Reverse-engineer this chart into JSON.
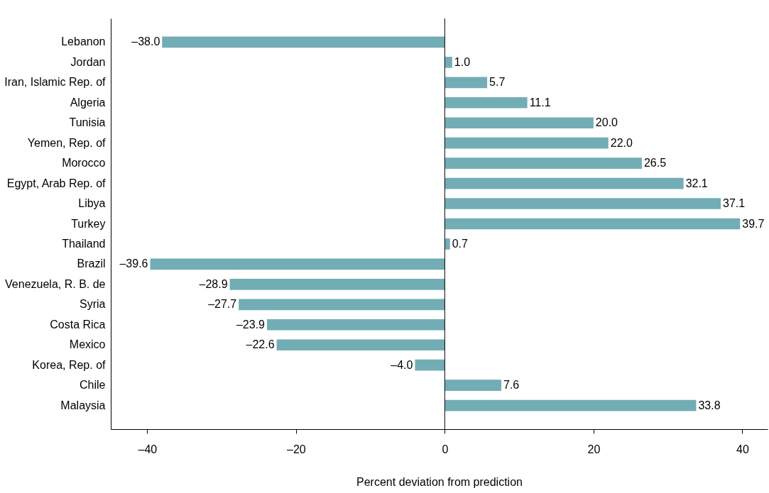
{
  "chart_data": {
    "type": "bar",
    "orientation": "horizontal",
    "xlabel": "Percent deviation from prediction",
    "categories": [
      "Lebanon",
      "Jordan",
      "Iran, Islamic Rep. of",
      "Algeria",
      "Tunisia",
      "Yemen, Rep. of",
      "Morocco",
      "Egypt, Arab Rep. of",
      "Libya",
      "Turkey",
      "Thailand",
      "Brazil",
      "Venezuela, R. B. de",
      "Syria",
      "Costa Rica",
      "Mexico",
      "Korea, Rep. of",
      "Chile",
      "Malaysia"
    ],
    "values": [
      -38.0,
      1.0,
      5.7,
      11.1,
      20.0,
      22.0,
      26.5,
      32.1,
      37.1,
      39.7,
      0.7,
      -39.6,
      -28.9,
      -27.7,
      -23.9,
      -22.6,
      -4.0,
      7.6,
      33.8
    ],
    "value_labels": [
      "–38.0",
      "1.0",
      "5.7",
      "11.1",
      "20.0",
      "22.0",
      "26.5",
      "32.1",
      "37.1",
      "39.7",
      "0.7",
      "–39.6",
      "–28.9",
      "–27.7",
      "–23.9",
      "–22.6",
      "–4.0",
      "7.6",
      "33.8"
    ],
    "color": "#72adb5",
    "xlim": [
      -44.9,
      43.4
    ],
    "xticks": [
      {
        "value": -40,
        "label": "–40"
      },
      {
        "value": -20,
        "label": "–20"
      },
      0,
      20,
      40
    ],
    "ref_lines": [
      {
        "axis": "x",
        "value": 0
      }
    ]
  }
}
